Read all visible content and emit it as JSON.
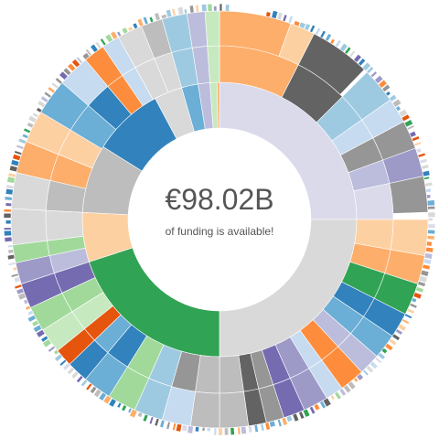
{
  "center": {
    "amount": "€98.02B",
    "caption": "of funding is available!"
  },
  "chart_data": {
    "type": "sunburst",
    "ring_count": 3,
    "palette": [
      "#dadaeb",
      "#d9d9d9",
      "#31a354",
      "#fdd0a2",
      "#bdbdbd",
      "#3182bd",
      "#6baed6",
      "#9ecae1",
      "#c6dbef",
      "#fdae6b",
      "#636363",
      "#969696",
      "#756bb1",
      "#9e9ac8",
      "#a1d99b",
      "#e6550d",
      "#fd8d3c",
      "#bcbddc"
    ],
    "segments": [
      {
        "ring": 1,
        "start": 0,
        "end": 90,
        "color": "#dadaeb"
      },
      {
        "ring": 1,
        "start": 90,
        "end": 180,
        "color": "#d9d9d9"
      },
      {
        "ring": 1,
        "start": 180,
        "end": 252,
        "color": "#31a354"
      },
      {
        "ring": 1,
        "start": 252,
        "end": 273,
        "color": "#fdd0a2"
      },
      {
        "ring": 1,
        "start": 273,
        "end": 302,
        "color": "#bdbdbd"
      },
      {
        "ring": 1,
        "start": 302,
        "end": 332,
        "color": "#3182bd"
      },
      {
        "ring": 1,
        "start": 332,
        "end": 344,
        "color": "#d9d9d9"
      },
      {
        "ring": 1,
        "start": 344,
        "end": 351,
        "color": "#6baed6"
      },
      {
        "ring": 1,
        "start": 351,
        "end": 356,
        "color": "#bcbddc"
      },
      {
        "ring": 1,
        "start": 356,
        "end": 359,
        "color": "#c7e9c0"
      },
      {
        "ring": 1,
        "start": 359,
        "end": 360,
        "color": "#fdae6b"
      },
      {
        "ring": 2,
        "start": 0,
        "end": 27,
        "color": "#fdae6b"
      },
      {
        "ring": 2,
        "start": 27,
        "end": 45,
        "color": "#636363"
      },
      {
        "ring": 2,
        "start": 45,
        "end": 55,
        "color": "#9ecae1"
      },
      {
        "ring": 2,
        "start": 55,
        "end": 62,
        "color": "#c6dbef"
      },
      {
        "ring": 2,
        "start": 62,
        "end": 70,
        "color": "#969696"
      },
      {
        "ring": 2,
        "start": 70,
        "end": 78,
        "color": "#bcbddc"
      },
      {
        "ring": 2,
        "start": 78,
        "end": 90,
        "color": "#dadaeb"
      },
      {
        "ring": 2,
        "start": 90,
        "end": 100,
        "color": "#fdd0a2"
      },
      {
        "ring": 2,
        "start": 100,
        "end": 108,
        "color": "#fdae6b"
      },
      {
        "ring": 2,
        "start": 108,
        "end": 117,
        "color": "#31a354"
      },
      {
        "ring": 2,
        "start": 117,
        "end": 124,
        "color": "#3182bd"
      },
      {
        "ring": 2,
        "start": 124,
        "end": 131,
        "color": "#6baed6"
      },
      {
        "ring": 2,
        "start": 131,
        "end": 137,
        "color": "#bcbddc"
      },
      {
        "ring": 2,
        "start": 137,
        "end": 144,
        "color": "#fd8d3c"
      },
      {
        "ring": 2,
        "start": 144,
        "end": 149,
        "color": "#c6dbef"
      },
      {
        "ring": 2,
        "start": 149,
        "end": 156,
        "color": "#9e9ac8"
      },
      {
        "ring": 2,
        "start": 156,
        "end": 162,
        "color": "#756bb1"
      },
      {
        "ring": 2,
        "start": 162,
        "end": 167,
        "color": "#969696"
      },
      {
        "ring": 2,
        "start": 167,
        "end": 172,
        "color": "#636363"
      },
      {
        "ring": 2,
        "start": 172,
        "end": 180,
        "color": "#bdbdbd"
      },
      {
        "ring": 2,
        "start": 180,
        "end": 188,
        "color": "#bdbdbd"
      },
      {
        "ring": 2,
        "start": 188,
        "end": 196,
        "color": "#969696"
      },
      {
        "ring": 2,
        "start": 196,
        "end": 204,
        "color": "#9ecae1"
      },
      {
        "ring": 2,
        "start": 204,
        "end": 212,
        "color": "#a1d99b"
      },
      {
        "ring": 2,
        "start": 212,
        "end": 220,
        "color": "#3182bd"
      },
      {
        "ring": 2,
        "start": 220,
        "end": 226,
        "color": "#6baed6"
      },
      {
        "ring": 2,
        "start": 226,
        "end": 231,
        "color": "#e6550d"
      },
      {
        "ring": 2,
        "start": 231,
        "end": 238,
        "color": "#c7e9c0"
      },
      {
        "ring": 2,
        "start": 238,
        "end": 245,
        "color": "#a1d99b"
      },
      {
        "ring": 2,
        "start": 245,
        "end": 252,
        "color": "#756bb1"
      },
      {
        "ring": 2,
        "start": 252,
        "end": 258,
        "color": "#bcbddc"
      },
      {
        "ring": 2,
        "start": 258,
        "end": 263,
        "color": "#a1d99b"
      },
      {
        "ring": 2,
        "start": 263,
        "end": 273,
        "color": "#d9d9d9"
      },
      {
        "ring": 2,
        "start": 273,
        "end": 283,
        "color": "#bdbdbd"
      },
      {
        "ring": 2,
        "start": 283,
        "end": 292,
        "color": "#fdae6b"
      },
      {
        "ring": 2,
        "start": 292,
        "end": 301,
        "color": "#fdd0a2"
      },
      {
        "ring": 2,
        "start": 301,
        "end": 311,
        "color": "#6baed6"
      },
      {
        "ring": 2,
        "start": 311,
        "end": 320,
        "color": "#3182bd"
      },
      {
        "ring": 2,
        "start": 320,
        "end": 326,
        "color": "#fd8d3c"
      },
      {
        "ring": 2,
        "start": 326,
        "end": 331,
        "color": "#c6dbef"
      },
      {
        "ring": 2,
        "start": 331,
        "end": 338,
        "color": "#d9d9d9"
      },
      {
        "ring": 2,
        "start": 338,
        "end": 344,
        "color": "#d9d9d9"
      },
      {
        "ring": 2,
        "start": 344,
        "end": 351,
        "color": "#9ecae1"
      },
      {
        "ring": 2,
        "start": 351,
        "end": 356,
        "color": "#bcbddc"
      },
      {
        "ring": 2,
        "start": 356,
        "end": 360,
        "color": "#c7e9c0"
      },
      {
        "ring": 3,
        "start": 0,
        "end": 20,
        "color": "#fdae6b"
      },
      {
        "ring": 3,
        "start": 20,
        "end": 27,
        "color": "#fdd0a2"
      },
      {
        "ring": 3,
        "start": 27,
        "end": 44,
        "color": "#636363"
      },
      {
        "ring": 3,
        "start": 45,
        "end": 55,
        "color": "#9ecae1"
      },
      {
        "ring": 3,
        "start": 55,
        "end": 62,
        "color": "#c6dbef"
      },
      {
        "ring": 3,
        "start": 62,
        "end": 70,
        "color": "#969696"
      },
      {
        "ring": 3,
        "start": 70,
        "end": 78,
        "color": "#9e9ac8"
      },
      {
        "ring": 3,
        "start": 78,
        "end": 88,
        "color": "#969696"
      },
      {
        "ring": 3,
        "start": 90,
        "end": 100,
        "color": "#fdd0a2"
      },
      {
        "ring": 3,
        "start": 100,
        "end": 108,
        "color": "#fdae6b"
      },
      {
        "ring": 3,
        "start": 108,
        "end": 117,
        "color": "#31a354"
      },
      {
        "ring": 3,
        "start": 117,
        "end": 124,
        "color": "#3182bd"
      },
      {
        "ring": 3,
        "start": 124,
        "end": 131,
        "color": "#6baed6"
      },
      {
        "ring": 3,
        "start": 131,
        "end": 137,
        "color": "#bcbddc"
      },
      {
        "ring": 3,
        "start": 137,
        "end": 144,
        "color": "#fd8d3c"
      },
      {
        "ring": 3,
        "start": 144,
        "end": 149,
        "color": "#c6dbef"
      },
      {
        "ring": 3,
        "start": 149,
        "end": 156,
        "color": "#9e9ac8"
      },
      {
        "ring": 3,
        "start": 156,
        "end": 162,
        "color": "#756bb1"
      },
      {
        "ring": 3,
        "start": 162,
        "end": 167,
        "color": "#969696"
      },
      {
        "ring": 3,
        "start": 167,
        "end": 172,
        "color": "#636363"
      },
      {
        "ring": 3,
        "start": 172,
        "end": 180,
        "color": "#bdbdbd"
      },
      {
        "ring": 3,
        "start": 180,
        "end": 188,
        "color": "#bdbdbd"
      },
      {
        "ring": 3,
        "start": 188,
        "end": 196,
        "color": "#c6dbef"
      },
      {
        "ring": 3,
        "start": 196,
        "end": 204,
        "color": "#9ecae1"
      },
      {
        "ring": 3,
        "start": 204,
        "end": 212,
        "color": "#a1d99b"
      },
      {
        "ring": 3,
        "start": 212,
        "end": 220,
        "color": "#6baed6"
      },
      {
        "ring": 3,
        "start": 220,
        "end": 226,
        "color": "#3182bd"
      },
      {
        "ring": 3,
        "start": 226,
        "end": 231,
        "color": "#e6550d"
      },
      {
        "ring": 3,
        "start": 231,
        "end": 238,
        "color": "#c7e9c0"
      },
      {
        "ring": 3,
        "start": 238,
        "end": 245,
        "color": "#a1d99b"
      },
      {
        "ring": 3,
        "start": 245,
        "end": 252,
        "color": "#756bb1"
      },
      {
        "ring": 3,
        "start": 252,
        "end": 258,
        "color": "#9e9ac8"
      },
      {
        "ring": 3,
        "start": 258,
        "end": 263,
        "color": "#a1d99b"
      },
      {
        "ring": 3,
        "start": 263,
        "end": 273,
        "color": "#d9d9d9"
      },
      {
        "ring": 3,
        "start": 273,
        "end": 283,
        "color": "#d9d9d9"
      },
      {
        "ring": 3,
        "start": 283,
        "end": 292,
        "color": "#fdae6b"
      },
      {
        "ring": 3,
        "start": 292,
        "end": 301,
        "color": "#fdd0a2"
      },
      {
        "ring": 3,
        "start": 301,
        "end": 311,
        "color": "#6baed6"
      },
      {
        "ring": 3,
        "start": 311,
        "end": 320,
        "color": "#c6dbef"
      },
      {
        "ring": 3,
        "start": 320,
        "end": 326,
        "color": "#fd8d3c"
      },
      {
        "ring": 3,
        "start": 326,
        "end": 331,
        "color": "#c6dbef"
      },
      {
        "ring": 3,
        "start": 331,
        "end": 338,
        "color": "#d9d9d9"
      },
      {
        "ring": 3,
        "start": 338,
        "end": 344,
        "color": "#bdbdbd"
      },
      {
        "ring": 3,
        "start": 344,
        "end": 351,
        "color": "#9ecae1"
      },
      {
        "ring": 3,
        "start": 351,
        "end": 356,
        "color": "#bcbddc"
      },
      {
        "ring": 3,
        "start": 356,
        "end": 360,
        "color": "#c7e9c0"
      }
    ]
  }
}
